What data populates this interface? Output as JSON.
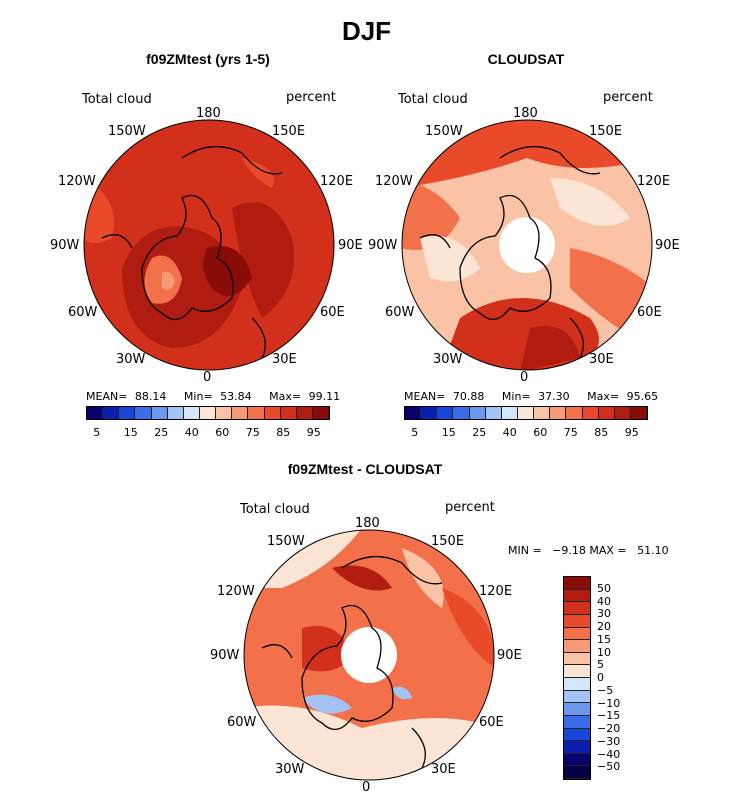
{
  "figure": {
    "title": "DJF"
  },
  "panels": [
    {
      "title": "f09ZMtest (yrs 1-5)",
      "variable": "Total cloud",
      "units": "percent",
      "stats": {
        "mean_label": "MEAN=",
        "mean": "88.14",
        "min_label": "Min=",
        "min": "53.84",
        "max_label": "Max=",
        "max": "99.11"
      },
      "lon_labels": {
        "top": "180",
        "tl": "150W",
        "tr": "150E",
        "ul": "120W",
        "ur": "120E",
        "l": "90W",
        "r": "90E",
        "ll": "60W",
        "lr": "60E",
        "bl": "30W",
        "br": "30E",
        "bottom": "0"
      },
      "colorbar_ticks": [
        "5",
        "15",
        "25",
        "40",
        "60",
        "75",
        "85",
        "95"
      ]
    },
    {
      "title": "CLOUDSAT",
      "variable": "Total cloud",
      "units": "percent",
      "stats": {
        "mean_label": "MEAN=",
        "mean": "70.88",
        "min_label": "Min=",
        "min": "37.30",
        "max_label": "Max=",
        "max": "95.65"
      },
      "lon_labels": {
        "top": "180",
        "tl": "150W",
        "tr": "150E",
        "ul": "120W",
        "ur": "120E",
        "l": "90W",
        "r": "90E",
        "ll": "60W",
        "lr": "60E",
        "bl": "30W",
        "br": "30E",
        "bottom": "0"
      },
      "colorbar_ticks": [
        "5",
        "15",
        "25",
        "40",
        "60",
        "75",
        "85",
        "95"
      ]
    },
    {
      "title": "f09ZMtest - CLOUDSAT",
      "variable": "Total cloud",
      "units": "percent",
      "stats_line": "MIN =   −9.18 MAX =   51.10",
      "lon_labels": {
        "top": "180",
        "tl": "150W",
        "tr": "150E",
        "ul": "120W",
        "ur": "120E",
        "l": "90W",
        "r": "90E",
        "ll": "60W",
        "lr": "60E",
        "bl": "30W",
        "br": "30E",
        "bottom": "0"
      },
      "colorbar_ticks": [
        "50",
        "40",
        "30",
        "20",
        "15",
        "10",
        "5",
        "0",
        "−5",
        "−10",
        "−15",
        "−20",
        "−30",
        "−40",
        "−50"
      ]
    }
  ],
  "colors": {
    "abs_scale": [
      "#08006e",
      "#0a1fb0",
      "#1846d8",
      "#3b6de8",
      "#6d98f0",
      "#a3c3f5",
      "#d6e6fa",
      "#fde5d6",
      "#fbc3a5",
      "#f79b76",
      "#f2704a",
      "#e84a2a",
      "#d2301a",
      "#b01c10",
      "#8a0c08"
    ],
    "diff_scale": [
      "#8a0c08",
      "#b01c10",
      "#d2301a",
      "#e84a2a",
      "#f2704a",
      "#f79b76",
      "#fbc3a5",
      "#fde5d6",
      "#d6e6fa",
      "#a3c3f5",
      "#6d98f0",
      "#3b6de8",
      "#1846d8",
      "#0a1fb0",
      "#08006e",
      "#050045"
    ]
  }
}
